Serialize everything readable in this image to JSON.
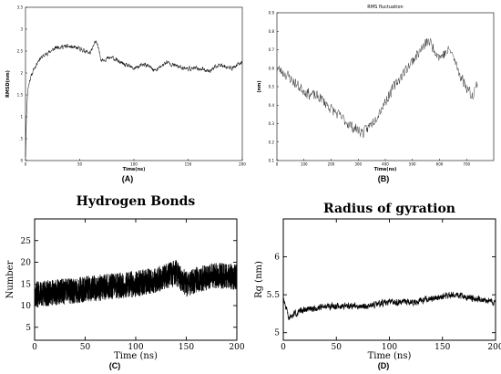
{
  "figure": {
    "captions": [
      "(A)",
      "(B)",
      "(C)",
      "(D)"
    ]
  },
  "chart_data": [
    {
      "panel": "A",
      "type": "line",
      "title": "",
      "xlabel": "Time(ns)",
      "ylabel": "RMSD(nm)",
      "xlim": [
        0,
        200
      ],
      "ylim": [
        0,
        3.5
      ],
      "xticks": [
        0,
        50,
        100,
        150,
        200
      ],
      "yticks": [
        0,
        0.5,
        1,
        1.5,
        2,
        2.5,
        3,
        3.5
      ],
      "xtick_labels": [
        "0",
        "50",
        "100",
        "150",
        "200"
      ],
      "ytick_labels": [
        "0",
        ".5",
        "1",
        "1.5",
        "2",
        "2.5",
        "3",
        "3.5"
      ],
      "color": "#000000",
      "series": [
        {
          "x": [
            0,
            1,
            2,
            4,
            8,
            12,
            20,
            30,
            40,
            50,
            60,
            65,
            70,
            80,
            90,
            100,
            110,
            120,
            130,
            140,
            150,
            160,
            170,
            180,
            190,
            200
          ],
          "y": [
            0.1,
            1.1,
            1.6,
            1.85,
            2.1,
            2.3,
            2.45,
            2.6,
            2.6,
            2.55,
            2.45,
            2.75,
            2.3,
            2.35,
            2.2,
            2.1,
            2.2,
            2.05,
            2.25,
            2.15,
            2.1,
            2.1,
            2.05,
            2.2,
            2.1,
            2.25
          ]
        }
      ]
    },
    {
      "panel": "B",
      "type": "line",
      "title": "RMS fluctuation",
      "xlabel": "Time(ns)",
      "ylabel": "(nm)",
      "xlim": [
        0,
        800
      ],
      "ylim": [
        0.1,
        0.9
      ],
      "xticks": [
        0,
        100,
        200,
        300,
        400,
        500,
        600,
        700
      ],
      "yticks": [
        0.1,
        0.2,
        0.3,
        0.4,
        0.5,
        0.6,
        0.7,
        0.8,
        0.9
      ],
      "xtick_labels": [
        "0",
        "100",
        "200",
        "300",
        "400",
        "500",
        "600",
        "700"
      ],
      "ytick_labels": [
        "0.1",
        "0.2",
        "0.3",
        "0.4",
        "0.5",
        "0.6",
        "0.7",
        "0.8",
        "0.9"
      ],
      "color": "#333333",
      "series": [
        {
          "x": [
            0,
            40,
            80,
            120,
            160,
            200,
            240,
            280,
            320,
            360,
            400,
            440,
            480,
            520,
            560,
            600,
            640,
            680,
            720,
            740
          ],
          "y": [
            0.6,
            0.56,
            0.5,
            0.46,
            0.44,
            0.38,
            0.33,
            0.28,
            0.25,
            0.32,
            0.42,
            0.52,
            0.6,
            0.68,
            0.75,
            0.66,
            0.7,
            0.55,
            0.45,
            0.52
          ]
        }
      ]
    },
    {
      "panel": "C",
      "type": "line",
      "title": "Hydrogen Bonds",
      "xlabel": "Time (ns)",
      "ylabel": "Number",
      "xlim": [
        0,
        200
      ],
      "ylim": [
        2,
        30
      ],
      "xticks": [
        0,
        50,
        100,
        150,
        200
      ],
      "yticks": [
        5,
        10,
        15,
        20,
        25
      ],
      "xtick_labels": [
        "0",
        "50",
        "100",
        "150",
        "200"
      ],
      "ytick_labels": [
        "5",
        "10",
        "15",
        "20",
        "25"
      ],
      "color": "#000000",
      "series": [
        {
          "x": [
            0,
            20,
            40,
            60,
            80,
            100,
            120,
            140,
            150,
            160,
            180,
            200
          ],
          "y": [
            12.5,
            13,
            13.5,
            14,
            14.5,
            15,
            16,
            17.5,
            15,
            16,
            17,
            16.5
          ]
        }
      ]
    },
    {
      "panel": "D",
      "type": "line",
      "title": "Radius of gyration",
      "xlabel": "Time (ns)",
      "ylabel": "Rg (nm)",
      "xlim": [
        0,
        200
      ],
      "ylim": [
        4.9,
        6.5
      ],
      "xticks": [
        0,
        50,
        100,
        150,
        200
      ],
      "yticks": [
        5,
        5.5,
        6
      ],
      "xtick_labels": [
        "0",
        "50",
        "100",
        "150",
        "200"
      ],
      "ytick_labels": [
        "5",
        "5.5",
        "6"
      ],
      "color": "#000000",
      "series": [
        {
          "x": [
            0,
            5,
            10,
            20,
            40,
            60,
            80,
            100,
            120,
            140,
            160,
            180,
            200
          ],
          "y": [
            5.45,
            5.2,
            5.25,
            5.3,
            5.35,
            5.35,
            5.35,
            5.4,
            5.4,
            5.45,
            5.5,
            5.45,
            5.4
          ]
        }
      ]
    }
  ]
}
